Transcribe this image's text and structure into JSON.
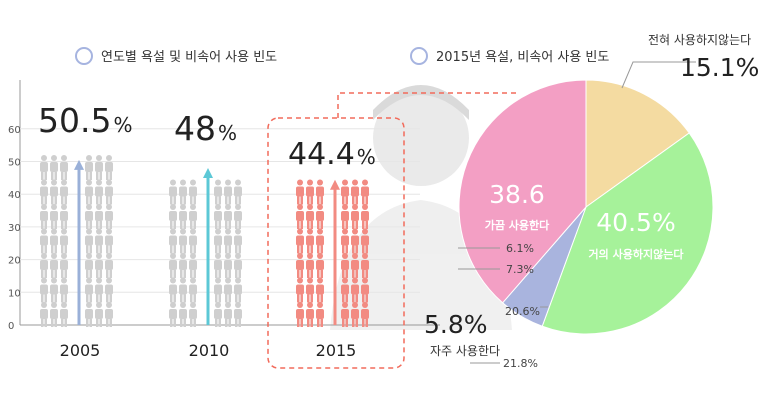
{
  "left_chart": {
    "caption": "연도별 욕설 및 비속어 사용 빈도",
    "y_ticks": [
      "0",
      "10",
      "20",
      "30",
      "40",
      "50",
      "60"
    ],
    "categories": [
      "2005",
      "2010",
      "2015"
    ],
    "pct_values": [
      "50.5",
      "48",
      "44.4"
    ],
    "pct_unit": "%",
    "colors": {
      "figure": "#cfcfcf",
      "figure_2015": "#f28b82",
      "arrow_2005": "#9ab0d8",
      "arrow_2010": "#5cc8d6",
      "arrow_2015": "#f28b82",
      "highlight": "#f26b5b"
    }
  },
  "right_chart": {
    "caption": "2015년 욕설, 비속어 사용 빈도",
    "slices": [
      {
        "label": "전혀 사용하지않는다",
        "value_text": "15.1%",
        "color": "#f4dba1"
      },
      {
        "label": "거의 사용하지않는다",
        "value_text": "40.5%",
        "color": "#a6f29a"
      },
      {
        "label": "자주 사용한다",
        "value_text": "5.8%",
        "color": "#a9b4de"
      },
      {
        "label": "가끔 사용한다",
        "value_text": "38.6",
        "color": "#f39fc4"
      }
    ],
    "small_values": [
      "6.1%",
      "7.3%",
      "20.6%",
      "21.8%"
    ]
  },
  "chart_data": [
    {
      "type": "bar",
      "title": "연도별 욕설 및 비속어 사용 빈도",
      "categories": [
        "2005",
        "2010",
        "2015"
      ],
      "values": [
        50.5,
        48,
        44.4
      ],
      "ylim": [
        0,
        65
      ],
      "y_ticks": [
        0,
        10,
        20,
        30,
        40,
        50,
        60
      ],
      "grid": true
    },
    {
      "type": "pie",
      "title": "2015년 욕설, 비속어 사용 빈도",
      "categories": [
        "전혀 사용하지않는다",
        "거의 사용하지않는다",
        "자주 사용한다",
        "가끔 사용한다"
      ],
      "values": [
        15.1,
        40.5,
        5.8,
        38.6
      ]
    }
  ]
}
